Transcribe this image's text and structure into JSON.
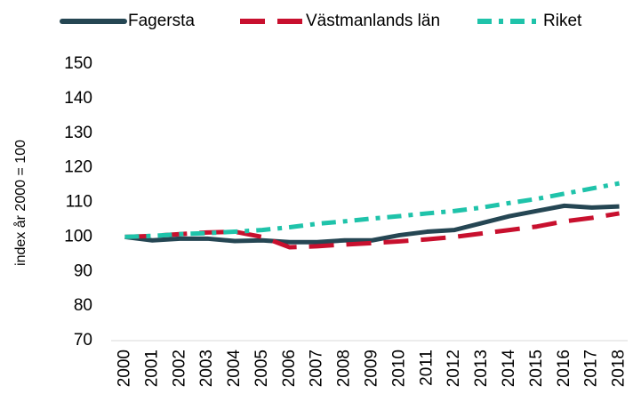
{
  "chart_data": {
    "type": "line",
    "y_label": "index år 2000 = 100",
    "categories": [
      "2000",
      "2001",
      "2002",
      "2003",
      "2004",
      "2005",
      "2006",
      "2007",
      "2008",
      "2009",
      "2010",
      "2011",
      "2012",
      "2013",
      "2014",
      "2015",
      "2016",
      "2017",
      "2018"
    ],
    "series": [
      {
        "name": "Fagersta",
        "color": "#254653",
        "dash": "solid",
        "values": [
          100,
          99,
          99.5,
          99.5,
          98.8,
          99,
          98.5,
          98.5,
          99,
          99,
          100.5,
          101.5,
          102,
          104,
          106,
          107.5,
          109,
          108.5,
          108.8
        ]
      },
      {
        "name": "Västmanlands län",
        "color": "#c8102e",
        "dash": "dashed",
        "values": [
          100,
          100.3,
          100.8,
          101.3,
          101.5,
          100,
          97,
          97.3,
          97.8,
          98.2,
          98.7,
          99.3,
          100,
          101,
          102,
          103,
          104.5,
          105.5,
          106.8
        ]
      },
      {
        "name": "Riket",
        "color": "#1fc3aa",
        "dash": "dashdot",
        "values": [
          100,
          100.3,
          100.8,
          101.1,
          101.5,
          102,
          102.8,
          103.8,
          104.5,
          105.3,
          106,
          106.8,
          107.5,
          108.5,
          109.8,
          111,
          112.5,
          114,
          115.5
        ]
      }
    ],
    "ylim": [
      70,
      150
    ],
    "yticks": [
      70,
      80,
      90,
      100,
      110,
      120,
      130,
      140,
      150
    ],
    "grid": false,
    "legend": "top"
  }
}
